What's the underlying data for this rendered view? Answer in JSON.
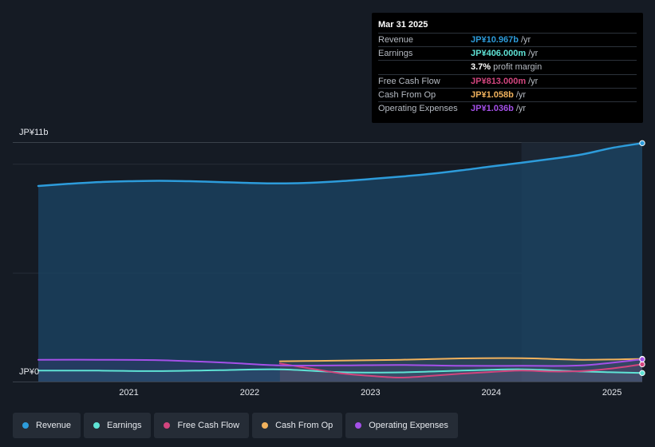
{
  "tooltip": {
    "date": "Mar 31 2025",
    "rows": [
      {
        "label": "Revenue",
        "value": "JP¥10.967b",
        "unit": "/yr",
        "color": "#2d9cdb"
      },
      {
        "label": "Earnings",
        "value": "JP¥406.000m",
        "unit": "/yr",
        "color": "#5fe3d5"
      },
      {
        "label": "",
        "value": "3.7%",
        "unit": "profit margin",
        "color": "#ffffff"
      },
      {
        "label": "Free Cash Flow",
        "value": "JP¥813.000m",
        "unit": "/yr",
        "color": "#d2457e"
      },
      {
        "label": "Cash From Op",
        "value": "JP¥1.058b",
        "unit": "/yr",
        "color": "#f1b25d"
      },
      {
        "label": "Operating Expenses",
        "value": "JP¥1.036b",
        "unit": "/yr",
        "color": "#a450e8"
      }
    ]
  },
  "legend": [
    {
      "label": "Revenue",
      "color": "#2d9cdb"
    },
    {
      "label": "Earnings",
      "color": "#5fe3d5"
    },
    {
      "label": "Free Cash Flow",
      "color": "#d2457e"
    },
    {
      "label": "Cash From Op",
      "color": "#f1b25d"
    },
    {
      "label": "Operating Expenses",
      "color": "#a450e8"
    }
  ],
  "chart_data": {
    "type": "line",
    "y_axis_labels": {
      "top": "JP¥11b",
      "bottom": "JP¥0"
    },
    "ylim": [
      0,
      11
    ],
    "xlim": [
      2020.25,
      2025.25
    ],
    "x_ticks": [
      {
        "value": 2021,
        "label": "2021"
      },
      {
        "value": 2022,
        "label": "2022"
      },
      {
        "value": 2023,
        "label": "2023"
      },
      {
        "value": 2024,
        "label": "2024"
      },
      {
        "value": 2025,
        "label": "2025"
      }
    ],
    "gridlines": [
      0,
      5,
      10,
      11
    ],
    "highlight_from": 2024.25,
    "series": [
      {
        "name": "Revenue",
        "color": "#2d9cdb",
        "fill": true,
        "x": [
          2020.25,
          2020.5,
          2020.75,
          2021,
          2021.25,
          2021.5,
          2021.75,
          2022,
          2022.25,
          2022.5,
          2022.75,
          2023,
          2023.25,
          2023.5,
          2023.75,
          2024,
          2024.25,
          2024.5,
          2024.75,
          2025,
          2025.25
        ],
        "values": [
          9.0,
          9.1,
          9.18,
          9.22,
          9.24,
          9.22,
          9.18,
          9.14,
          9.12,
          9.15,
          9.22,
          9.32,
          9.43,
          9.56,
          9.72,
          9.9,
          10.07,
          10.25,
          10.45,
          10.75,
          10.97
        ]
      },
      {
        "name": "Earnings",
        "color": "#5fe3d5",
        "fill": false,
        "x": [
          2020.25,
          2020.75,
          2021.25,
          2021.75,
          2022.25,
          2022.75,
          2023.25,
          2023.75,
          2024.25,
          2024.75,
          2025.25
        ],
        "values": [
          0.52,
          0.52,
          0.5,
          0.54,
          0.58,
          0.45,
          0.44,
          0.52,
          0.58,
          0.48,
          0.41
        ]
      },
      {
        "name": "Free Cash Flow",
        "color": "#d2457e",
        "fill": false,
        "x": [
          2022.25,
          2022.5,
          2022.75,
          2023,
          2023.25,
          2023.5,
          2023.75,
          2024,
          2024.25,
          2024.5,
          2024.75,
          2025,
          2025.25
        ],
        "values": [
          0.85,
          0.62,
          0.4,
          0.28,
          0.2,
          0.28,
          0.38,
          0.46,
          0.52,
          0.48,
          0.5,
          0.62,
          0.81
        ]
      },
      {
        "name": "Cash From Op",
        "color": "#f1b25d",
        "fill": false,
        "x": [
          2022.25,
          2022.75,
          2023.25,
          2023.75,
          2024.25,
          2024.75,
          2025.25
        ],
        "values": [
          0.95,
          0.98,
          1.02,
          1.08,
          1.09,
          1.02,
          1.06
        ]
      },
      {
        "name": "Operating Expenses",
        "color": "#a450e8",
        "fill": false,
        "x": [
          2020.25,
          2020.75,
          2021.25,
          2021.75,
          2022.25,
          2022.75,
          2023.25,
          2023.75,
          2024.25,
          2024.75,
          2025.25
        ],
        "values": [
          1.02,
          1.02,
          1.0,
          0.9,
          0.76,
          0.76,
          0.78,
          0.74,
          0.74,
          0.76,
          1.04
        ]
      }
    ]
  }
}
